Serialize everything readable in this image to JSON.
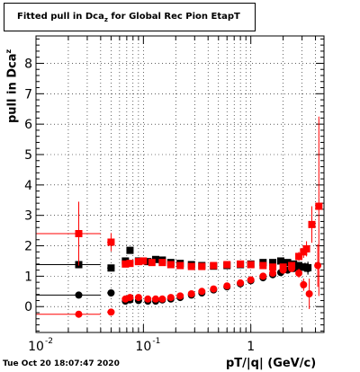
{
  "chart_data": {
    "type": "scatter",
    "title": "Fitted pull in Dca",
    "title_subscript": "z",
    "title_suffix": " for Global Rec Pion EtapT",
    "xlabel": "pT/|q| (GeV/c)",
    "ylabel": "pull in Dca",
    "ylabel_subscript": "z",
    "x_scale": "log",
    "xlim": [
      0.01,
      4.8
    ],
    "ylim": [
      -0.85,
      8.9
    ],
    "grid": true,
    "x_ticks": [
      {
        "value": 0.01,
        "label": "10"
      },
      {
        "value": 0.1,
        "label": "10"
      },
      {
        "value": 1,
        "label": "1"
      }
    ],
    "x_tick_exponents": [
      "-2",
      "-1"
    ],
    "y_ticks": [
      0,
      1,
      2,
      3,
      4,
      5,
      6,
      7,
      8
    ],
    "series": [
      {
        "marker": "square",
        "color": "#000000",
        "points": [
          [
            0.025,
            1.38,
            0.015,
            0.035
          ],
          [
            0.05,
            1.27,
            0.004,
            0
          ],
          [
            0.068,
            1.5,
            0.003,
            0
          ],
          [
            0.075,
            1.85,
            0.003,
            0
          ],
          [
            0.09,
            1.5,
            0.003,
            0
          ],
          [
            0.11,
            1.48,
            0.003,
            0
          ],
          [
            0.13,
            1.55,
            0.003,
            0
          ],
          [
            0.15,
            1.53,
            0.003,
            0
          ],
          [
            0.18,
            1.45,
            0.004,
            0
          ],
          [
            0.22,
            1.42,
            0.004,
            0
          ],
          [
            0.28,
            1.38,
            0.005,
            0
          ],
          [
            0.35,
            1.35,
            0.006,
            0
          ],
          [
            0.45,
            1.33,
            0.007,
            0
          ],
          [
            0.6,
            1.35,
            0.008,
            0
          ],
          [
            0.8,
            1.38,
            0.01,
            0
          ],
          [
            1.0,
            1.4,
            0.012,
            0
          ],
          [
            1.3,
            1.45,
            0.015,
            0
          ],
          [
            1.6,
            1.45,
            0.02,
            0
          ],
          [
            1.9,
            1.5,
            0.025,
            0
          ],
          [
            2.2,
            1.45,
            0.03,
            0.05
          ],
          [
            2.5,
            1.4,
            0.03,
            0.08
          ],
          [
            2.8,
            1.35,
            0.03,
            0.1
          ],
          [
            3.0,
            1.3,
            0.03,
            0.12
          ],
          [
            3.2,
            1.3,
            0.03,
            0.15
          ],
          [
            3.4,
            1.28,
            0.03,
            0.2
          ]
        ]
      },
      {
        "marker": "circle",
        "color": "#000000",
        "points": [
          [
            0.025,
            0.38,
            0.015,
            0.035
          ],
          [
            0.05,
            0.45,
            0.004,
            0
          ],
          [
            0.068,
            0.18,
            0.003,
            0
          ],
          [
            0.075,
            0.22,
            0.003,
            0
          ],
          [
            0.09,
            0.2,
            0.003,
            0
          ],
          [
            0.11,
            0.18,
            0.003,
            0
          ],
          [
            0.13,
            0.18,
            0.003,
            0
          ],
          [
            0.15,
            0.22,
            0.003,
            0
          ],
          [
            0.18,
            0.25,
            0.004,
            0
          ],
          [
            0.22,
            0.3,
            0.004,
            0
          ],
          [
            0.28,
            0.38,
            0.005,
            0
          ],
          [
            0.35,
            0.45,
            0.006,
            0
          ],
          [
            0.45,
            0.55,
            0.007,
            0
          ],
          [
            0.6,
            0.65,
            0.008,
            0
          ],
          [
            0.8,
            0.75,
            0.01,
            0
          ],
          [
            1.0,
            0.85,
            0.012,
            0
          ],
          [
            1.3,
            0.95,
            0.015,
            0
          ],
          [
            1.6,
            1.05,
            0.02,
            0
          ],
          [
            1.9,
            1.12,
            0.025,
            0
          ],
          [
            2.2,
            1.2,
            0.03,
            0.05
          ],
          [
            2.5,
            1.25,
            0.03,
            0.08
          ],
          [
            2.8,
            1.3,
            0.03,
            0.1
          ],
          [
            3.0,
            1.3,
            0.03,
            0.12
          ],
          [
            3.2,
            1.28,
            0.03,
            0.15
          ],
          [
            3.4,
            1.25,
            0.03,
            0.2
          ]
        ]
      },
      {
        "marker": "square",
        "color": "#ff0000",
        "points": [
          [
            0.025,
            2.4,
            0.015,
            1.05
          ],
          [
            0.05,
            2.12,
            0.004,
            0.3
          ],
          [
            0.068,
            1.4,
            0.003,
            0
          ],
          [
            0.075,
            1.42,
            0.003,
            0
          ],
          [
            0.09,
            1.48,
            0.003,
            0
          ],
          [
            0.1,
            1.5,
            0.003,
            0
          ],
          [
            0.12,
            1.45,
            0.003,
            0
          ],
          [
            0.15,
            1.45,
            0.003,
            0
          ],
          [
            0.18,
            1.38,
            0.004,
            0
          ],
          [
            0.22,
            1.35,
            0.004,
            0
          ],
          [
            0.28,
            1.32,
            0.005,
            0
          ],
          [
            0.35,
            1.32,
            0.006,
            0
          ],
          [
            0.45,
            1.35,
            0.007,
            0
          ],
          [
            0.6,
            1.38,
            0.008,
            0
          ],
          [
            0.8,
            1.4,
            0.01,
            0
          ],
          [
            1.0,
            1.38,
            0.012,
            0
          ],
          [
            1.3,
            1.35,
            0.015,
            0
          ],
          [
            1.6,
            1.3,
            0.02,
            0
          ],
          [
            2.0,
            1.3,
            0.025,
            0.05
          ],
          [
            2.4,
            1.35,
            0.03,
            0.1
          ],
          [
            2.8,
            1.65,
            0.03,
            0.15
          ],
          [
            3.1,
            1.8,
            0.03,
            0.2
          ],
          [
            3.3,
            1.9,
            0.03,
            0.25
          ],
          [
            3.7,
            2.7,
            0.04,
            0.6
          ],
          [
            4.3,
            3.3,
            0.05,
            2.95
          ]
        ]
      },
      {
        "marker": "circle",
        "color": "#ff0000",
        "points": [
          [
            0.025,
            -0.25,
            0.015,
            0.04
          ],
          [
            0.05,
            -0.18,
            0.004,
            0
          ],
          [
            0.068,
            0.25,
            0.003,
            0
          ],
          [
            0.075,
            0.3,
            0.003,
            0
          ],
          [
            0.09,
            0.3,
            0.003,
            0
          ],
          [
            0.11,
            0.25,
            0.003,
            0
          ],
          [
            0.13,
            0.25,
            0.003,
            0
          ],
          [
            0.15,
            0.25,
            0.003,
            0
          ],
          [
            0.18,
            0.3,
            0.004,
            0
          ],
          [
            0.22,
            0.35,
            0.004,
            0
          ],
          [
            0.28,
            0.42,
            0.005,
            0
          ],
          [
            0.35,
            0.5,
            0.006,
            0
          ],
          [
            0.45,
            0.58,
            0.007,
            0
          ],
          [
            0.6,
            0.68,
            0.008,
            0
          ],
          [
            0.8,
            0.78,
            0.01,
            0
          ],
          [
            1.0,
            0.88,
            0.012,
            0
          ],
          [
            1.3,
            1.0,
            0.015,
            0
          ],
          [
            1.6,
            1.1,
            0.02,
            0
          ],
          [
            2.0,
            1.2,
            0.025,
            0.05
          ],
          [
            2.4,
            1.25,
            0.03,
            0.1
          ],
          [
            2.8,
            1.1,
            0.03,
            0.15
          ],
          [
            3.1,
            0.72,
            0.03,
            0.2
          ],
          [
            3.5,
            0.42,
            0.035,
            0.5
          ],
          [
            4.2,
            1.35,
            0.05,
            0.7
          ]
        ]
      }
    ]
  },
  "footer": {
    "timestamp": "Tue Oct 20 18:07:47 2020"
  }
}
